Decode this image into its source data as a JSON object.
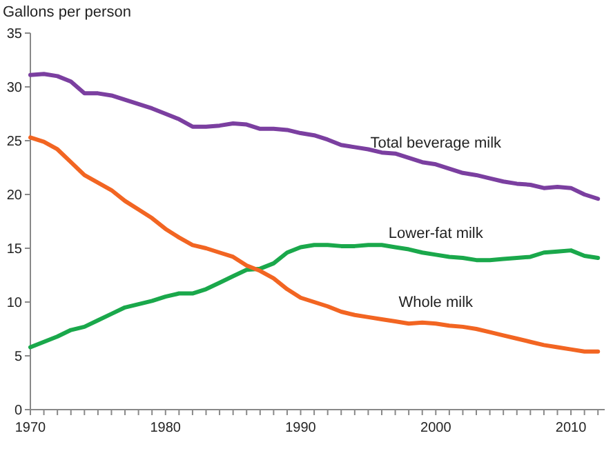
{
  "chart_data": {
    "type": "line",
    "ylabel": "Gallons per person",
    "x": [
      1970,
      1971,
      1972,
      1973,
      1974,
      1975,
      1976,
      1977,
      1978,
      1979,
      1980,
      1981,
      1982,
      1983,
      1984,
      1985,
      1986,
      1987,
      1988,
      1989,
      1990,
      1991,
      1992,
      1993,
      1994,
      1995,
      1996,
      1997,
      1998,
      1999,
      2000,
      2001,
      2002,
      2003,
      2004,
      2005,
      2006,
      2007,
      2008,
      2009,
      2010,
      2011,
      2012
    ],
    "series": [
      {
        "name": "Total beverage milk",
        "color": "#7b3fa0",
        "values": [
          31.1,
          31.2,
          31.0,
          30.5,
          29.4,
          29.4,
          29.2,
          28.8,
          28.4,
          28.0,
          27.5,
          27.0,
          26.3,
          26.3,
          26.4,
          26.6,
          26.5,
          26.1,
          26.1,
          26.0,
          25.7,
          25.5,
          25.1,
          24.6,
          24.4,
          24.2,
          23.9,
          23.8,
          23.4,
          23.0,
          22.8,
          22.4,
          22.0,
          21.8,
          21.5,
          21.2,
          21.0,
          20.9,
          20.6,
          20.7,
          20.6,
          20.0,
          19.6
        ]
      },
      {
        "name": "Lower-fat milk",
        "color": "#1aa84b",
        "values": [
          5.8,
          6.3,
          6.8,
          7.4,
          7.7,
          8.3,
          8.9,
          9.5,
          9.8,
          10.1,
          10.5,
          10.8,
          10.8,
          11.2,
          11.8,
          12.4,
          13.0,
          13.1,
          13.6,
          14.6,
          15.1,
          15.3,
          15.3,
          15.2,
          15.2,
          15.3,
          15.3,
          15.1,
          14.9,
          14.6,
          14.4,
          14.2,
          14.1,
          13.9,
          13.9,
          14.0,
          14.1,
          14.2,
          14.6,
          14.7,
          14.8,
          14.3,
          14.1
        ]
      },
      {
        "name": "Whole milk",
        "color": "#f26522",
        "values": [
          25.3,
          24.9,
          24.2,
          23.0,
          21.8,
          21.1,
          20.4,
          19.4,
          18.6,
          17.8,
          16.8,
          16.0,
          15.3,
          15.0,
          14.6,
          14.2,
          13.4,
          12.9,
          12.2,
          11.2,
          10.4,
          10.0,
          9.6,
          9.1,
          8.8,
          8.6,
          8.4,
          8.2,
          8.0,
          8.1,
          8.0,
          7.8,
          7.7,
          7.5,
          7.2,
          6.9,
          6.6,
          6.3,
          6.0,
          5.8,
          5.6,
          5.4,
          5.4
        ]
      }
    ],
    "xlim": [
      1970,
      2012.5
    ],
    "xticks": [
      1970,
      {
        "value": 1971,
        "label": null
      },
      {
        "value": 1972,
        "label": null
      },
      {
        "value": 1973,
        "label": null
      },
      {
        "value": 1974,
        "label": null
      },
      {
        "value": 1975,
        "label": null
      },
      {
        "value": 1976,
        "label": null
      },
      {
        "value": 1977,
        "label": null
      },
      {
        "value": 1978,
        "label": null
      },
      {
        "value": 1979,
        "label": null
      },
      1980,
      {
        "value": 1981,
        "label": null
      },
      {
        "value": 1982,
        "label": null
      },
      {
        "value": 1983,
        "label": null
      },
      {
        "value": 1984,
        "label": null
      },
      {
        "value": 1985,
        "label": null
      },
      {
        "value": 1986,
        "label": null
      },
      {
        "value": 1987,
        "label": null
      },
      {
        "value": 1988,
        "label": null
      },
      {
        "value": 1989,
        "label": null
      },
      1990,
      {
        "value": 1991,
        "label": null
      },
      {
        "value": 1992,
        "label": null
      },
      {
        "value": 1993,
        "label": null
      },
      {
        "value": 1994,
        "label": null
      },
      {
        "value": 1995,
        "label": null
      },
      {
        "value": 1996,
        "label": null
      },
      {
        "value": 1997,
        "label": null
      },
      {
        "value": 1998,
        "label": null
      },
      {
        "value": 1999,
        "label": null
      },
      2000,
      {
        "value": 2001,
        "label": null
      },
      {
        "value": 2002,
        "label": null
      },
      {
        "value": 2003,
        "label": null
      },
      {
        "value": 2004,
        "label": null
      },
      {
        "value": 2005,
        "label": null
      },
      {
        "value": 2006,
        "label": null
      },
      {
        "value": 2007,
        "label": null
      },
      {
        "value": 2008,
        "label": null
      },
      {
        "value": 2009,
        "label": null
      },
      2010,
      {
        "value": 2011,
        "label": null
      },
      {
        "value": 2012,
        "label": null
      }
    ],
    "ylim": [
      0,
      35
    ],
    "yticks": [
      0,
      5,
      10,
      15,
      20,
      25,
      30,
      35
    ],
    "grid": false,
    "legend": false,
    "marker": "none",
    "line_style": "solid"
  }
}
